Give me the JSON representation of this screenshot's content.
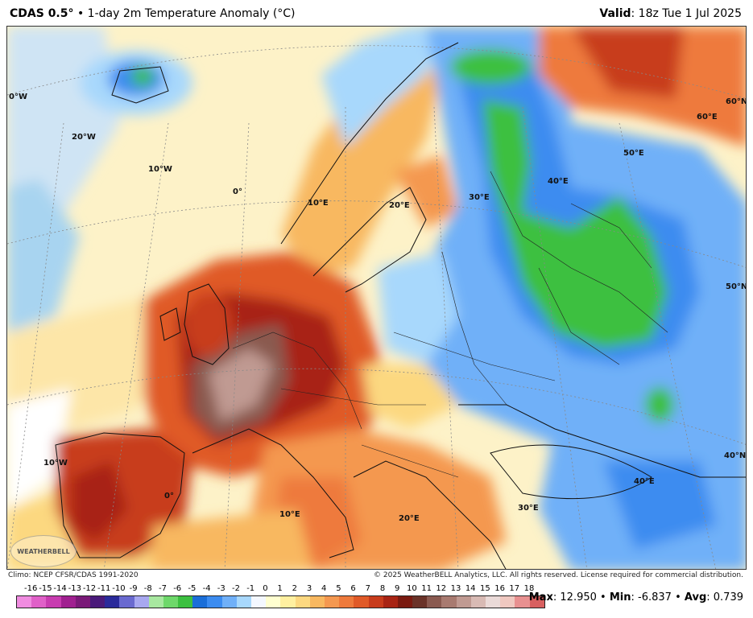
{
  "header": {
    "model": "CDAS 0.5°",
    "separator": "•",
    "product": "1-day 2m Temperature Anomaly (°C)",
    "valid_label": "Valid",
    "valid_value": ": 18z Tue 1 Jul 2025"
  },
  "map": {
    "grid_labels": [
      {
        "text": "0°W"
      },
      {
        "text": "20°W"
      },
      {
        "text": "10°W"
      },
      {
        "text": "0°"
      },
      {
        "text": "10°E"
      },
      {
        "text": "20°E"
      },
      {
        "text": "30°E"
      },
      {
        "text": "40°E"
      },
      {
        "text": "50°E"
      },
      {
        "text": "60°E"
      },
      {
        "text": "60°N"
      },
      {
        "text": "50°N"
      },
      {
        "text": "40°N"
      },
      {
        "text": "10°W"
      },
      {
        "text": "0°"
      },
      {
        "text": "10°E"
      },
      {
        "text": "20°E"
      },
      {
        "text": "30°E"
      },
      {
        "text": "40°E"
      }
    ],
    "logo_text": "WEATHERBELL"
  },
  "footer": {
    "climo": "Climo: NCEP CFSR/CDAS 1991-2020",
    "copyright": "© 2025 WeatherBELL Analytics, LLC. All rights reserved. License required for commercial distribution."
  },
  "colorbar": {
    "ticks": [
      "-16",
      "-15",
      "-14",
      "-13",
      "-12",
      "-11",
      "-10",
      "-9",
      "-8",
      "-7",
      "-6",
      "-5",
      "-4",
      "-3",
      "-2",
      "-1",
      "0",
      "1",
      "2",
      "3",
      "4",
      "5",
      "6",
      "7",
      "8",
      "9",
      "10",
      "11",
      "12",
      "13",
      "14",
      "15",
      "16",
      "17",
      "18"
    ],
    "colors": [
      "#f08ce0",
      "#e060c8",
      "#c83cb0",
      "#a02090",
      "#7a1a78",
      "#4a1a7a",
      "#2a2a9a",
      "#6a6ad0",
      "#a8a8f0",
      "#a8e8a0",
      "#6ed86a",
      "#3cc040",
      "#1a6ed8",
      "#3c8cf0",
      "#70b0f8",
      "#a8d8fc",
      "#f4f8ff",
      "#ffffd0",
      "#fff0a0",
      "#fcd880",
      "#f8b860",
      "#f49850",
      "#ee7a3c",
      "#e05a28",
      "#c83c1c",
      "#a82414",
      "#7a1a10",
      "#6a3228",
      "#8a5a50",
      "#a87a70",
      "#c09a92",
      "#d8bab4",
      "#eadad8",
      "#f0c8c0",
      "#e89090",
      "#d86060"
    ]
  },
  "stats": {
    "max_label": "Max",
    "max_value": ": 12.950",
    "min_label": "Min",
    "min_value": ": -6.837",
    "avg_label": "Avg",
    "avg_value": ": 0.739",
    "sep": "•"
  }
}
